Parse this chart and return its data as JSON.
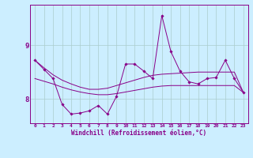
{
  "xlabel": "Windchill (Refroidissement éolien,°C)",
  "background_color": "#cceeff",
  "line_color": "#880088",
  "grid_color": "#aacccc",
  "x_ticks": [
    0,
    1,
    2,
    3,
    4,
    5,
    6,
    7,
    8,
    9,
    10,
    11,
    12,
    13,
    14,
    15,
    16,
    17,
    18,
    19,
    20,
    21,
    22,
    23
  ],
  "y_ticks": [
    8,
    9
  ],
  "ylim": [
    7.55,
    9.75
  ],
  "xlim": [
    -0.5,
    23.5
  ],
  "windchill_data": [
    8.72,
    8.55,
    8.38,
    7.9,
    7.72,
    7.74,
    7.78,
    7.88,
    7.72,
    8.05,
    8.65,
    8.65,
    8.52,
    8.38,
    9.55,
    8.88,
    8.52,
    8.32,
    8.28,
    8.38,
    8.4,
    8.72,
    8.38,
    8.12
  ],
  "trend1": [
    8.72,
    8.58,
    8.45,
    8.35,
    8.28,
    8.22,
    8.18,
    8.18,
    8.2,
    8.25,
    8.3,
    8.35,
    8.4,
    8.44,
    8.46,
    8.47,
    8.48,
    8.49,
    8.5,
    8.5,
    8.5,
    8.5,
    8.5,
    8.12
  ],
  "trend2": [
    8.38,
    8.33,
    8.28,
    8.22,
    8.17,
    8.13,
    8.1,
    8.08,
    8.08,
    8.1,
    8.13,
    8.16,
    8.19,
    8.22,
    8.24,
    8.25,
    8.25,
    8.25,
    8.25,
    8.25,
    8.25,
    8.25,
    8.25,
    8.12
  ]
}
